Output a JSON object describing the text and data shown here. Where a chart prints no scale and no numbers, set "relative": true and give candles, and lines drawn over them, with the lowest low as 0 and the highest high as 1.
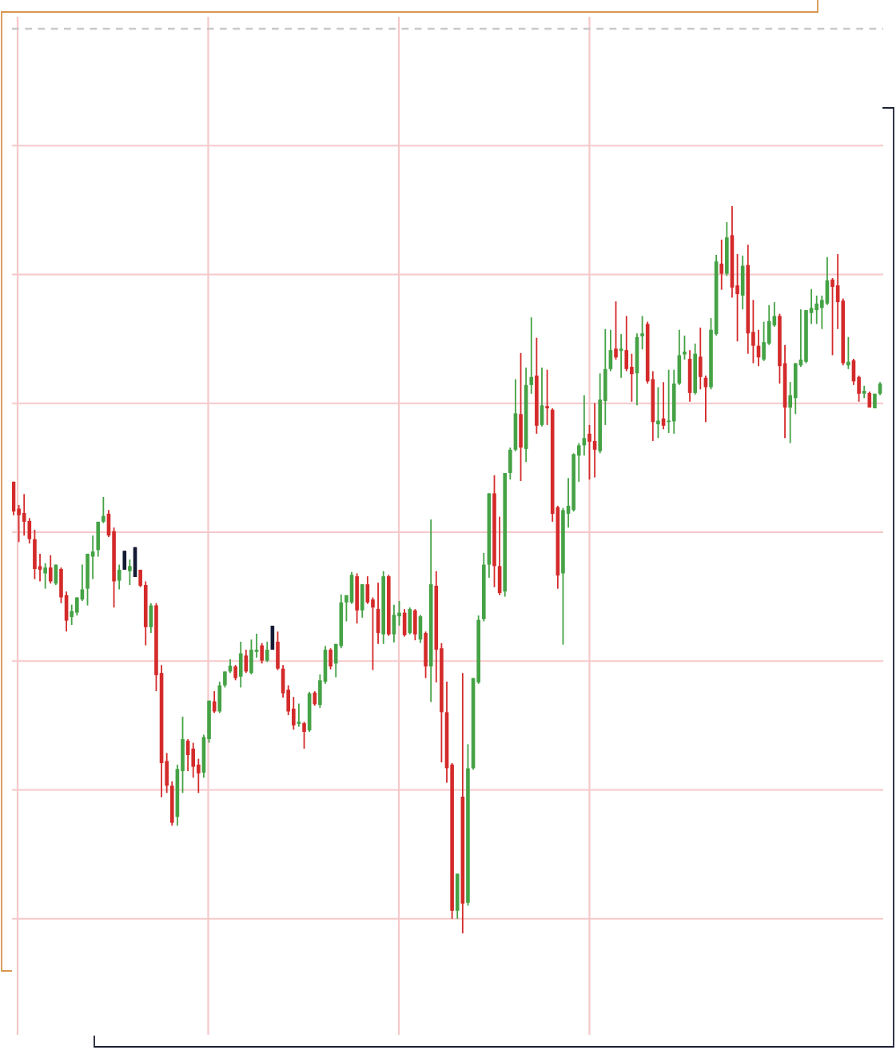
{
  "chart_data": {
    "type": "candlestick",
    "relative": true,
    "grid": true,
    "tick_labels": false,
    "categories": [
      null,
      null,
      null,
      null,
      null,
      null,
      null,
      null,
      null,
      null,
      null,
      null,
      null,
      null,
      null,
      null,
      null,
      null,
      null,
      null,
      null,
      null,
      null,
      null,
      null,
      null,
      null,
      null,
      null,
      null,
      null,
      null,
      null,
      null,
      null,
      null,
      null,
      null,
      null,
      null,
      null,
      null,
      null,
      null,
      null,
      null,
      null,
      null,
      null,
      null,
      null,
      null,
      null,
      null,
      null,
      null,
      null,
      null,
      null,
      null,
      null,
      null,
      null,
      null,
      null,
      null,
      null,
      null,
      null,
      null,
      null,
      null,
      null,
      null,
      null,
      null,
      null,
      null,
      null,
      null,
      null,
      null,
      null,
      null,
      null,
      null,
      null,
      null,
      null,
      null,
      null,
      null,
      null,
      null,
      null,
      null,
      null,
      null,
      null,
      null,
      null,
      null,
      null,
      null,
      null,
      null,
      null,
      null,
      null,
      null,
      null,
      null,
      null,
      null,
      null,
      null,
      null,
      null,
      null,
      null,
      null,
      null,
      null,
      null,
      null,
      null,
      null,
      null,
      null,
      null,
      null,
      null,
      null,
      null,
      null,
      null,
      null,
      null,
      null,
      null,
      null,
      null,
      null,
      null,
      null,
      null,
      null,
      null,
      null,
      null,
      null,
      null,
      null,
      null,
      null,
      null,
      null,
      null,
      null,
      null,
      null,
      null,
      null,
      null,
      null
    ],
    "ohlc": [
      [
        0.621,
        0.621,
        0.575,
        0.58
      ],
      [
        0.584,
        0.589,
        0.538,
        0.575
      ],
      [
        0.578,
        0.604,
        0.547,
        0.566
      ],
      [
        0.567,
        0.571,
        0.536,
        0.542
      ],
      [
        0.542,
        0.555,
        0.487,
        0.501
      ],
      [
        0.505,
        0.522,
        0.484,
        0.5
      ],
      [
        0.495,
        0.509,
        0.474,
        0.503
      ],
      [
        0.503,
        0.52,
        0.481,
        0.484
      ],
      [
        0.481,
        0.507,
        0.479,
        0.507
      ],
      [
        0.501,
        0.503,
        0.454,
        0.462
      ],
      [
        0.465,
        0.47,
        0.415,
        0.43
      ],
      [
        0.435,
        0.452,
        0.424,
        0.443
      ],
      [
        0.441,
        0.462,
        0.437,
        0.462
      ],
      [
        0.459,
        0.507,
        0.457,
        0.473
      ],
      [
        0.474,
        0.522,
        0.451,
        0.522
      ],
      [
        0.518,
        0.547,
        0.487,
        0.525
      ],
      [
        0.527,
        0.566,
        0.518,
        0.566
      ],
      [
        0.566,
        0.6,
        0.564,
        0.574
      ],
      [
        0.577,
        0.582,
        0.545,
        0.547
      ],
      [
        0.553,
        0.558,
        0.448,
        0.484
      ],
      [
        0.485,
        0.507,
        0.473,
        0.5
      ],
      [
        0.526,
        0.526,
        0.5,
        0.5
      ],
      [
        0.498,
        0.514,
        0.479,
        0.505
      ],
      [
        0.531,
        0.531,
        0.49,
        0.49
      ],
      [
        0.5,
        0.5,
        0.476,
        0.478
      ],
      [
        0.479,
        0.484,
        0.396,
        0.421
      ],
      [
        0.421,
        0.454,
        0.413,
        0.451
      ],
      [
        0.451,
        0.454,
        0.333,
        0.355
      ],
      [
        0.358,
        0.369,
        0.187,
        0.234
      ],
      [
        0.237,
        0.248,
        0.193,
        0.203
      ],
      [
        0.203,
        0.209,
        0.148,
        0.152
      ],
      [
        0.16,
        0.232,
        0.148,
        0.226
      ],
      [
        0.223,
        0.298,
        0.193,
        0.267
      ],
      [
        0.265,
        0.267,
        0.223,
        0.245
      ],
      [
        0.254,
        0.262,
        0.214,
        0.229
      ],
      [
        0.232,
        0.24,
        0.193,
        0.22
      ],
      [
        0.221,
        0.273,
        0.214,
        0.27
      ],
      [
        0.267,
        0.32,
        0.262,
        0.32
      ],
      [
        0.319,
        0.333,
        0.303,
        0.305
      ],
      [
        0.305,
        0.346,
        0.303,
        0.341
      ],
      [
        0.341,
        0.36,
        0.338,
        0.36
      ],
      [
        0.36,
        0.377,
        0.358,
        0.368
      ],
      [
        0.367,
        0.369,
        0.348,
        0.351
      ],
      [
        0.353,
        0.401,
        0.338,
        0.385
      ],
      [
        0.382,
        0.39,
        0.358,
        0.36
      ],
      [
        0.358,
        0.404,
        0.356,
        0.39
      ],
      [
        0.387,
        0.412,
        0.379,
        0.39
      ],
      [
        0.396,
        0.399,
        0.371,
        0.375
      ],
      [
        0.375,
        0.401,
        0.373,
        0.39
      ],
      [
        0.423,
        0.423,
        0.39,
        0.39
      ],
      [
        0.401,
        0.415,
        0.362,
        0.364
      ],
      [
        0.364,
        0.369,
        0.324,
        0.33
      ],
      [
        0.335,
        0.341,
        0.3,
        0.305
      ],
      [
        0.309,
        0.325,
        0.28,
        0.286
      ],
      [
        0.288,
        0.316,
        0.284,
        0.291
      ],
      [
        0.289,
        0.291,
        0.254,
        0.277
      ],
      [
        0.279,
        0.332,
        0.277,
        0.33
      ],
      [
        0.331,
        0.333,
        0.313,
        0.315
      ],
      [
        0.314,
        0.356,
        0.31,
        0.348
      ],
      [
        0.346,
        0.395,
        0.343,
        0.39
      ],
      [
        0.39,
        0.392,
        0.363,
        0.367
      ],
      [
        0.371,
        0.398,
        0.352,
        0.398
      ],
      [
        0.395,
        0.466,
        0.392,
        0.455
      ],
      [
        0.455,
        0.465,
        0.429,
        0.465
      ],
      [
        0.455,
        0.497,
        0.453,
        0.493
      ],
      [
        0.491,
        0.495,
        0.426,
        0.444
      ],
      [
        0.444,
        0.48,
        0.434,
        0.48
      ],
      [
        0.48,
        0.491,
        0.453,
        0.455
      ],
      [
        0.459,
        0.462,
        0.362,
        0.448
      ],
      [
        0.446,
        0.482,
        0.398,
        0.413
      ],
      [
        0.411,
        0.498,
        0.398,
        0.491
      ],
      [
        0.491,
        0.493,
        0.409,
        0.411
      ],
      [
        0.411,
        0.452,
        0.4,
        0.438
      ],
      [
        0.436,
        0.457,
        0.423,
        0.441
      ],
      [
        0.441,
        0.446,
        0.408,
        0.41
      ],
      [
        0.413,
        0.448,
        0.411,
        0.446
      ],
      [
        0.444,
        0.446,
        0.403,
        0.411
      ],
      [
        0.404,
        0.438,
        0.399,
        0.436
      ],
      [
        0.413,
        0.415,
        0.351,
        0.367
      ],
      [
        0.367,
        0.569,
        0.318,
        0.48
      ],
      [
        0.478,
        0.498,
        0.345,
        0.39
      ],
      [
        0.392,
        0.399,
        0.235,
        0.304
      ],
      [
        0.304,
        0.346,
        0.207,
        0.227
      ],
      [
        0.232,
        0.234,
        0.02,
        0.031
      ],
      [
        0.031,
        0.082,
        0.02,
        0.082
      ],
      [
        0.188,
        0.358,
        0,
        0.041
      ],
      [
        0.042,
        0.26,
        0.038,
        0.227
      ],
      [
        0.227,
        0.351,
        0.225,
        0.351
      ],
      [
        0.345,
        0.437,
        0.343,
        0.431
      ],
      [
        0.432,
        0.523,
        0.429,
        0.507
      ],
      [
        0.507,
        0.605,
        0.489,
        0.605
      ],
      [
        0.605,
        0.63,
        0.476,
        0.505
      ],
      [
        0.505,
        0.573,
        0.465,
        0.468
      ],
      [
        0.47,
        0.633,
        0.463,
        0.633
      ],
      [
        0.633,
        0.668,
        0.624,
        0.665
      ],
      [
        0.665,
        0.762,
        0.663,
        0.715
      ],
      [
        0.714,
        0.798,
        0.622,
        0.668
      ],
      [
        0.666,
        0.778,
        0.648,
        0.754
      ],
      [
        0.754,
        0.847,
        0.742,
        0.765
      ],
      [
        0.767,
        0.819,
        0.687,
        0.698
      ],
      [
        0.699,
        0.778,
        0.697,
        0.726
      ],
      [
        0.725,
        0.775,
        0.699,
        0.722
      ],
      [
        0.72,
        0.722,
        0.566,
        0.577
      ],
      [
        0.586,
        0.588,
        0.474,
        0.492
      ],
      [
        0.495,
        0.585,
        0.397,
        0.582
      ],
      [
        0.577,
        0.626,
        0.558,
        0.588
      ],
      [
        0.582,
        0.66,
        0.58,
        0.659
      ],
      [
        0.657,
        0.674,
        0.621,
        0.671
      ],
      [
        0.671,
        0.74,
        0.657,
        0.681
      ],
      [
        0.687,
        0.699,
        0.624,
        0.676
      ],
      [
        0.677,
        0.729,
        0.627,
        0.665
      ],
      [
        0.663,
        0.77,
        0.66,
        0.734
      ],
      [
        0.732,
        0.831,
        0.699,
        0.776
      ],
      [
        0.776,
        0.83,
        0.773,
        0.802
      ],
      [
        0.804,
        0.869,
        0.789,
        0.792
      ],
      [
        0.801,
        0.824,
        0.764,
        0.804
      ],
      [
        0.802,
        0.849,
        0.773,
        0.776
      ],
      [
        0.779,
        0.797,
        0.731,
        0.769
      ],
      [
        0.77,
        0.825,
        0.726,
        0.82
      ],
      [
        0.821,
        0.849,
        0.803,
        0.825
      ],
      [
        0.838,
        0.841,
        0.756,
        0.759
      ],
      [
        0.762,
        0.773,
        0.677,
        0.703
      ],
      [
        0.7,
        0.751,
        0.681,
        0.705
      ],
      [
        0.708,
        0.758,
        0.693,
        0.698
      ],
      [
        0.703,
        0.775,
        0.688,
        0.705
      ],
      [
        0.704,
        0.775,
        0.687,
        0.756
      ],
      [
        0.756,
        0.83,
        0.754,
        0.795
      ],
      [
        0.796,
        0.822,
        0.789,
        0.8
      ],
      [
        0.79,
        0.802,
        0.731,
        0.743
      ],
      [
        0.743,
        0.811,
        0.741,
        0.797
      ],
      [
        0.793,
        0.833,
        0.748,
        0.765
      ],
      [
        0.764,
        0.767,
        0.703,
        0.751
      ],
      [
        0.751,
        0.846,
        0.748,
        0.83
      ],
      [
        0.824,
        0.933,
        0.822,
        0.924
      ],
      [
        0.921,
        0.954,
        0.885,
        0.907
      ],
      [
        0.907,
        0.978,
        0.904,
        0.957
      ],
      [
        0.96,
        1,
        0.874,
        0.888
      ],
      [
        0.891,
        0.934,
        0.814,
        0.879
      ],
      [
        0.877,
        0.932,
        0.858,
        0.918
      ],
      [
        0.919,
        0.947,
        0.797,
        0.825
      ],
      [
        0.827,
        0.871,
        0.784,
        0.808
      ],
      [
        0.808,
        0.83,
        0.78,
        0.792
      ],
      [
        0.789,
        0.841,
        0.787,
        0.813
      ],
      [
        0.811,
        0.864,
        0.809,
        0.842
      ],
      [
        0.836,
        0.868,
        0.834,
        0.849
      ],
      [
        0.849,
        0.852,
        0.756,
        0.78
      ],
      [
        0.784,
        0.809,
        0.681,
        0.723
      ],
      [
        0.723,
        0.758,
        0.674,
        0.74
      ],
      [
        0.736,
        0.784,
        0.714,
        0.784
      ],
      [
        0.781,
        0.858,
        0.779,
        0.789
      ],
      [
        0.786,
        0.857,
        0.784,
        0.857
      ],
      [
        0.853,
        0.886,
        0.838,
        0.86
      ],
      [
        0.857,
        0.877,
        0.838,
        0.866
      ],
      [
        0.86,
        0.877,
        0.831,
        0.871
      ],
      [
        0.866,
        0.93,
        0.864,
        0.898
      ],
      [
        0.899,
        0.901,
        0.795,
        0.889
      ],
      [
        0.891,
        0.934,
        0.831,
        0.868
      ],
      [
        0.87,
        0.873,
        0.781,
        0.784
      ],
      [
        0.781,
        0.82,
        0.776,
        0.786
      ],
      [
        0.788,
        0.79,
        0.754,
        0.759
      ],
      [
        0.765,
        0.767,
        0.731,
        0.742
      ],
      [
        0.742,
        0.753,
        0.736,
        0.746
      ],
      [
        0.743,
        0.745,
        0.723,
        0.723
      ],
      [
        0.722,
        0.742,
        0.722,
        0.742
      ],
      [
        0.742,
        0.758,
        0.74,
        0.756
      ]
    ],
    "colors": [
      "#d42a2a",
      "#d42a2a",
      "#d42a2a",
      "#d42a2a",
      "#d42a2a",
      "#d42a2a",
      "#45a245",
      "#d42a2a",
      "#45a245",
      "#d42a2a",
      "#d42a2a",
      "#45a245",
      "#45a245",
      "#45a245",
      "#45a245",
      "#45a245",
      "#45a245",
      "#45a245",
      "#d42a2a",
      "#d42a2a",
      "#45a245",
      "#161b35",
      "#45a245",
      "#161b35",
      "#d42a2a",
      "#d42a2a",
      "#45a245",
      "#d42a2a",
      "#d42a2a",
      "#d42a2a",
      "#d42a2a",
      "#45a245",
      "#45a245",
      "#d42a2a",
      "#d42a2a",
      "#d42a2a",
      "#45a245",
      "#45a245",
      "#d42a2a",
      "#45a245",
      "#45a245",
      "#45a245",
      "#d42a2a",
      "#45a245",
      "#d42a2a",
      "#45a245",
      "#45a245",
      "#d42a2a",
      "#45a245",
      "#161b35",
      "#d42a2a",
      "#d42a2a",
      "#d42a2a",
      "#d42a2a",
      "#45a245",
      "#d42a2a",
      "#45a245",
      "#d42a2a",
      "#45a245",
      "#45a245",
      "#d42a2a",
      "#45a245",
      "#45a245",
      "#45a245",
      "#45a245",
      "#d42a2a",
      "#45a245",
      "#d42a2a",
      "#d42a2a",
      "#d42a2a",
      "#45a245",
      "#d42a2a",
      "#45a245",
      "#45a245",
      "#d42a2a",
      "#45a245",
      "#d42a2a",
      "#45a245",
      "#d42a2a",
      "#45a245",
      "#d42a2a",
      "#d42a2a",
      "#d42a2a",
      "#d42a2a",
      "#45a245",
      "#d42a2a",
      "#45a245",
      "#45a245",
      "#45a245",
      "#45a245",
      "#45a245",
      "#d42a2a",
      "#d42a2a",
      "#45a245",
      "#45a245",
      "#45a245",
      "#d42a2a",
      "#45a245",
      "#45a245",
      "#d42a2a",
      "#45a245",
      "#d42a2a",
      "#d42a2a",
      "#d42a2a",
      "#45a245",
      "#45a245",
      "#45a245",
      "#45a245",
      "#45a245",
      "#d42a2a",
      "#d42a2a",
      "#45a245",
      "#45a245",
      "#45a245",
      "#d42a2a",
      "#45a245",
      "#d42a2a",
      "#d42a2a",
      "#45a245",
      "#45a245",
      "#d42a2a",
      "#d42a2a",
      "#45a245",
      "#d42a2a",
      "#45a245",
      "#45a245",
      "#45a245",
      "#45a245",
      "#d42a2a",
      "#45a245",
      "#d42a2a",
      "#d42a2a",
      "#45a245",
      "#45a245",
      "#d42a2a",
      "#45a245",
      "#d42a2a",
      "#d42a2a",
      "#45a245",
      "#d42a2a",
      "#d42a2a",
      "#d42a2a",
      "#45a245",
      "#45a245",
      "#45a245",
      "#d42a2a",
      "#d42a2a",
      "#45a245",
      "#45a245",
      "#45a245",
      "#45a245",
      "#45a245",
      "#45a245",
      "#45a245",
      "#45a245",
      "#d42a2a",
      "#d42a2a",
      "#d42a2a",
      "#45a245",
      "#d42a2a",
      "#d42a2a",
      "#45a245",
      "#d42a2a",
      "#45a245",
      "#45a245"
    ],
    "ref_lines": [
      {
        "axis": "y",
        "value": 1.244,
        "color": "#c9c9cc",
        "line_style": "dashed"
      }
    ]
  }
}
